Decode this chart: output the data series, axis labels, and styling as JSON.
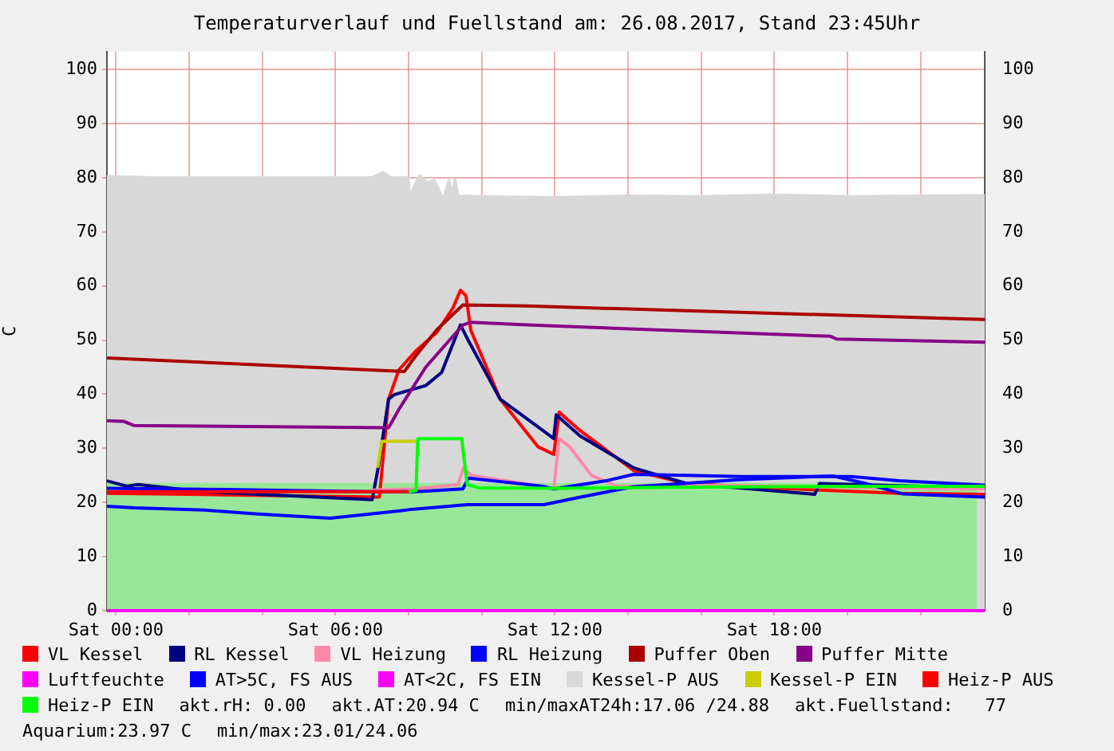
{
  "chart_data": {
    "type": "line",
    "title": "Temperaturverlauf und Fuellstand am: 26.08.2017, Stand 23:45Uhr",
    "ylabel": "C",
    "xlim": [
      "2017-08-25T23:45",
      "2017-08-26T23:45"
    ],
    "xticks": [
      {
        "value": "2017-08-26T00:00",
        "label": "Sat 00:00"
      },
      {
        "value": "2017-08-26T02:00",
        "label": null
      },
      {
        "value": "2017-08-26T04:00",
        "label": null
      },
      {
        "value": "2017-08-26T06:00",
        "label": "Sat 06:00"
      },
      {
        "value": "2017-08-26T08:00",
        "label": null
      },
      {
        "value": "2017-08-26T10:00",
        "label": null
      },
      {
        "value": "2017-08-26T12:00",
        "label": "Sat 12:00"
      },
      {
        "value": "2017-08-26T14:00",
        "label": null
      },
      {
        "value": "2017-08-26T16:00",
        "label": null
      },
      {
        "value": "2017-08-26T18:00",
        "label": "Sat 18:00"
      },
      {
        "value": "2017-08-26T20:00",
        "label": null
      },
      {
        "value": "2017-08-26T22:00",
        "label": null
      }
    ],
    "ylim": [
      0,
      103.3
    ],
    "yticks": [
      0,
      10,
      20,
      30,
      40,
      50,
      60,
      70,
      80,
      90,
      100
    ],
    "y2lim": [
      0,
      103.3
    ],
    "y2ticks": [
      0,
      10,
      20,
      30,
      40,
      50,
      60,
      70,
      80,
      90,
      100
    ],
    "grid": true,
    "legend": "bottom",
    "series": [
      {
        "name": "VL Kessel",
        "color": "#ff0000",
        "x": [
          "2017-08-25T23:45",
          "2017-08-26T03:00",
          "2017-08-26T07:12",
          "2017-08-26T07:27",
          "2017-08-26T07:44",
          "2017-08-26T08:11",
          "2017-08-26T08:46",
          "2017-08-26T09:12",
          "2017-08-26T09:25",
          "2017-08-26T09:34",
          "2017-08-26T09:42",
          "2017-08-26T10:30",
          "2017-08-26T11:32",
          "2017-08-26T11:58",
          "2017-08-26T12:07",
          "2017-08-26T12:41",
          "2017-08-26T14:09",
          "2017-08-26T15:36",
          "2017-08-26T18:30",
          "2017-08-26T21:24",
          "2017-08-26T23:45"
        ],
        "values": [
          21.7,
          21.4,
          21.0,
          39.1,
          44.5,
          47.9,
          51.4,
          55.8,
          59.2,
          58.2,
          51.8,
          39.1,
          30.3,
          28.9,
          36.7,
          33.3,
          25.9,
          23.5,
          22.5,
          21.7,
          21.5
        ]
      },
      {
        "name": "RL Kessel",
        "color": "#000080",
        "x": [
          "2017-08-25T23:45",
          "2017-08-26T00:18",
          "2017-08-26T00:36",
          "2017-08-26T02:22",
          "2017-08-26T07:00",
          "2017-08-26T07:10",
          "2017-08-26T07:27",
          "2017-08-26T07:36",
          "2017-08-26T08:28",
          "2017-08-26T08:54",
          "2017-08-26T09:25",
          "2017-08-26T09:38",
          "2017-08-26T10:30",
          "2017-08-26T11:40",
          "2017-08-26T11:58",
          "2017-08-26T12:02",
          "2017-08-26T12:41",
          "2017-08-26T14:09",
          "2017-08-26T15:36",
          "2017-08-26T19:06",
          "2017-08-26T19:14",
          "2017-08-26T21:24",
          "2017-08-26T23:45"
        ],
        "values": [
          24.0,
          23.0,
          23.3,
          22.0,
          20.5,
          26.4,
          39.1,
          39.9,
          41.6,
          44.0,
          52.8,
          49.9,
          39.1,
          33.3,
          31.8,
          36.2,
          32.3,
          26.4,
          23.5,
          21.5,
          23.5,
          23.1,
          22.7
        ]
      },
      {
        "name": "VL Heizung",
        "color": "#ff88aa",
        "x": [
          "2017-08-26T07:00",
          "2017-08-26T08:11",
          "2017-08-26T09:21",
          "2017-08-26T09:30",
          "2017-08-26T09:42",
          "2017-08-26T11:40",
          "2017-08-26T11:58",
          "2017-08-26T12:07",
          "2017-08-26T12:24",
          "2017-08-26T13:00",
          "2017-08-26T13:42",
          "2017-08-26T16:00",
          "2017-08-26T20:00",
          "2017-08-26T23:45"
        ],
        "values": [
          22.3,
          22.5,
          23.3,
          26.4,
          25.0,
          23.0,
          22.5,
          31.8,
          30.3,
          25.0,
          23.0,
          23.2,
          22.8,
          22.5
        ]
      },
      {
        "name": "RL Heizung",
        "color": "#0000ff",
        "x": [
          "2017-08-25T23:45",
          "2017-08-26T03:00",
          "2017-08-26T07:00",
          "2017-08-26T08:12",
          "2017-08-26T09:29",
          "2017-08-26T09:38",
          "2017-08-26T11:40",
          "2017-08-26T11:58",
          "2017-08-26T13:24",
          "2017-08-26T14:09",
          "2017-08-26T15:36",
          "2017-08-26T17:06",
          "2017-08-26T20:06",
          "2017-08-26T21:24",
          "2017-08-26T23:45"
        ],
        "values": [
          22.6,
          22.4,
          22.0,
          22.0,
          22.5,
          24.5,
          23.0,
          22.5,
          24.0,
          25.2,
          25.0,
          24.8,
          24.8,
          24.0,
          23.2
        ]
      },
      {
        "name": "Puffer Oben",
        "color": "#aa0000",
        "x": [
          "2017-08-25T23:45",
          "2017-08-26T07:53",
          "2017-08-26T08:11",
          "2017-08-26T08:46",
          "2017-08-26T09:29",
          "2017-08-26T11:14",
          "2017-08-26T23:45"
        ],
        "values": [
          46.7,
          44.2,
          47.0,
          51.9,
          56.5,
          56.3,
          53.8
        ]
      },
      {
        "name": "Puffer Mitte",
        "color": "#880088",
        "x": [
          "2017-08-25T23:45",
          "2017-08-26T00:12",
          "2017-08-26T00:30",
          "2017-08-26T07:27",
          "2017-08-26T07:44",
          "2017-08-26T08:28",
          "2017-08-26T09:29",
          "2017-08-26T09:42",
          "2017-08-26T11:14",
          "2017-08-26T19:32",
          "2017-08-26T19:42",
          "2017-08-26T23:45"
        ],
        "values": [
          35.1,
          35.0,
          34.2,
          33.8,
          37.2,
          45.0,
          52.8,
          53.3,
          52.8,
          50.7,
          50.2,
          49.6
        ]
      },
      {
        "name": "Luftfeuchte",
        "color": "#ff00ff",
        "x": [
          "2017-08-25T23:45",
          "2017-08-26T23:45"
        ],
        "values": [
          0,
          0
        ]
      },
      {
        "name": "AT>5C, FS AUS",
        "color": "#0000ff",
        "x": [
          "2017-08-25T23:45",
          "2017-08-26T00:30",
          "2017-08-26T02:24",
          "2017-08-26T03:48",
          "2017-08-26T05:51",
          "2017-08-26T07:00",
          "2017-08-26T08:12",
          "2017-08-26T09:36",
          "2017-08-26T11:42",
          "2017-08-26T12:42",
          "2017-08-26T14:09",
          "2017-08-26T15:30",
          "2017-08-26T17:00",
          "2017-08-26T18:30",
          "2017-08-26T19:36",
          "2017-08-26T20:30",
          "2017-08-26T21:30",
          "2017-08-26T23:45"
        ],
        "values": [
          19.3,
          19.0,
          18.6,
          17.9,
          17.1,
          17.9,
          18.8,
          19.6,
          19.6,
          21.0,
          22.9,
          23.5,
          24.2,
          24.6,
          24.9,
          23.5,
          21.6,
          21.0
        ]
      },
      {
        "name": "AT<2C, FS EIN",
        "color": "#ff00ff"
      },
      {
        "name": "Kessel-P AUS",
        "type": "area",
        "color": "#d8d8d8",
        "x": [
          "2017-08-25T23:45",
          "2017-08-26T01:00",
          "2017-08-26T03:00",
          "2017-08-26T05:00",
          "2017-08-26T07:00",
          "2017-08-26T07:18",
          "2017-08-26T07:30",
          "2017-08-26T07:59",
          "2017-08-26T08:01",
          "2017-08-26T08:06",
          "2017-08-26T08:18",
          "2017-08-26T08:30",
          "2017-08-26T08:42",
          "2017-08-26T08:48",
          "2017-08-26T08:57",
          "2017-08-26T09:06",
          "2017-08-26T09:12",
          "2017-08-26T09:16",
          "2017-08-26T09:21",
          "2017-08-26T10:00",
          "2017-08-26T12:00",
          "2017-08-26T14:00",
          "2017-08-26T16:00",
          "2017-08-26T18:00",
          "2017-08-26T20:00",
          "2017-08-26T22:00",
          "2017-08-26T23:45"
        ],
        "values": [
          80.2,
          80.0,
          80.0,
          80.0,
          80.0,
          81.0,
          80.0,
          80.0,
          76.5,
          77.5,
          80.4,
          79.0,
          79.5,
          78.0,
          75.9,
          79.5,
          76.5,
          79.6,
          76.6,
          76.5,
          76.3,
          76.6,
          76.5,
          76.8,
          76.5,
          76.6,
          76.7
        ]
      },
      {
        "name": "Kessel-P EIN",
        "color": "#cccc00",
        "x": [
          "2017-08-26T07:09",
          "2017-08-26T07:16",
          "2017-08-26T08:12"
        ],
        "values": [
          26.4,
          31.3,
          31.3
        ]
      },
      {
        "name": "Heiz-P AUS",
        "color": "#ff0000",
        "x": [
          "2017-08-25T23:45",
          "2017-08-26T08:00"
        ],
        "values": [
          22.0,
          22.0
        ]
      },
      {
        "name": "Heiz-P EIN",
        "color": "#00ff00",
        "x": [
          "2017-08-26T08:00",
          "2017-08-26T08:12",
          "2017-08-26T08:15",
          "2017-08-26T09:27",
          "2017-08-26T09:36",
          "2017-08-26T09:55",
          "2017-08-26T12:00",
          "2017-08-26T15:00",
          "2017-08-26T18:00",
          "2017-08-26T21:00",
          "2017-08-26T23:45"
        ],
        "values": [
          22.0,
          22.2,
          31.8,
          31.8,
          23.3,
          22.7,
          22.6,
          22.8,
          22.9,
          23.0,
          23.0
        ]
      },
      {
        "type": "area",
        "color": "#99e699",
        "x": [
          "2017-08-25T23:45",
          "2017-08-26T23:32"
        ],
        "values": [
          23.3,
          23.3
        ]
      }
    ],
    "annotations": [
      "akt.rH: 0.00",
      "akt.AT:20.94 C",
      "min/maxAT24h:17.06 /24.88",
      "akt.Fuellstand:   77",
      "Aquarium:23.97 C",
      "min/max:23.01/24.06"
    ]
  }
}
